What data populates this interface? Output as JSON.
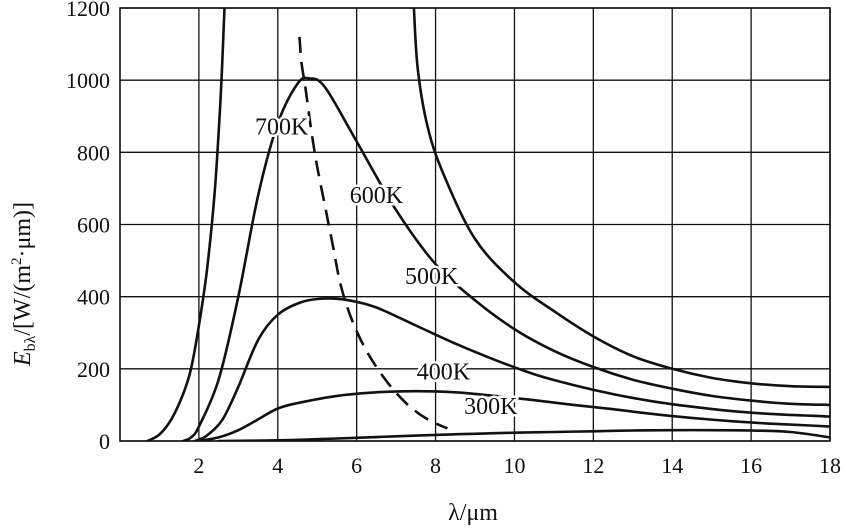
{
  "chart_data": {
    "type": "line",
    "title": "",
    "xlabel": "λ/μm",
    "ylabel_parts": {
      "symbol": "E",
      "sub": "bλ",
      "unit_a": "/[W/(m",
      "sup": "2",
      "unit_b": "·μm)]"
    },
    "xlim": [
      0,
      18
    ],
    "ylim": [
      0,
      1200
    ],
    "x_ticks": [
      2,
      4,
      6,
      8,
      10,
      12,
      14,
      16,
      18
    ],
    "x_tick_labels": [
      "2",
      "4",
      "6",
      "8",
      "10",
      "12",
      "14",
      "16",
      "18"
    ],
    "y_ticks": [
      0,
      200,
      400,
      600,
      800,
      1000,
      1200
    ],
    "y_tick_labels": [
      "0",
      "200",
      "400",
      "600",
      "800",
      "1000",
      "1200"
    ],
    "grid": true,
    "colors": {
      "line": "#111111",
      "grid": "#111111",
      "background": "#ffffff"
    },
    "series": [
      {
        "name": "700K",
        "label_anchor": [
          4.1,
          850
        ],
        "segments": [
          [
            [
              0.7,
              0
            ],
            [
              1.0,
              18
            ],
            [
              1.3,
              60
            ],
            [
              1.6,
              130
            ],
            [
              1.8,
              200
            ],
            [
              2.0,
              320
            ],
            [
              2.2,
              470
            ],
            [
              2.4,
              690
            ],
            [
              2.55,
              950
            ],
            [
              2.65,
              1200
            ]
          ],
          [
            [
              7.45,
              1200
            ],
            [
              7.55,
              1030
            ],
            [
              7.8,
              870
            ],
            [
              8.2,
              740
            ],
            [
              9.0,
              560
            ],
            [
              10.0,
              440
            ],
            [
              11.0,
              360
            ],
            [
              12.0,
              290
            ],
            [
              13.0,
              235
            ],
            [
              14.0,
              200
            ],
            [
              15.0,
              175
            ],
            [
              16.0,
              160
            ],
            [
              17.0,
              152
            ],
            [
              18.0,
              150
            ]
          ]
        ]
      },
      {
        "name": "600K",
        "label_anchor": [
          6.5,
          660
        ],
        "segments": [
          [
            [
              1.6,
              0
            ],
            [
              1.8,
              10
            ],
            [
              2.0,
              40
            ],
            [
              2.5,
              170
            ],
            [
              3.0,
              400
            ],
            [
              3.5,
              680
            ],
            [
              4.0,
              880
            ],
            [
              4.5,
              990
            ],
            [
              4.8,
              1005
            ],
            [
              5.2,
              980
            ],
            [
              6.0,
              830
            ],
            [
              7.0,
              640
            ],
            [
              8.0,
              490
            ],
            [
              9.0,
              390
            ],
            [
              10.0,
              310
            ],
            [
              11.0,
              250
            ],
            [
              12.0,
              205
            ],
            [
              13.0,
              170
            ],
            [
              14.0,
              145
            ],
            [
              15.0,
              125
            ],
            [
              16.0,
              112
            ],
            [
              17.0,
              103
            ],
            [
              18.0,
              100
            ]
          ]
        ]
      },
      {
        "name": "500K",
        "label_anchor": [
          7.9,
          435
        ],
        "segments": [
          [
            [
              1.9,
              0
            ],
            [
              2.2,
              15
            ],
            [
              2.6,
              60
            ],
            [
              3.0,
              150
            ],
            [
              3.5,
              280
            ],
            [
              4.0,
              350
            ],
            [
              4.6,
              385
            ],
            [
              5.2,
              395
            ],
            [
              5.8,
              390
            ],
            [
              6.5,
              370
            ],
            [
              7.5,
              320
            ],
            [
              8.5,
              270
            ],
            [
              9.5,
              225
            ],
            [
              10.5,
              185
            ],
            [
              11.5,
              155
            ],
            [
              12.5,
              130
            ],
            [
              13.5,
              110
            ],
            [
              14.5,
              95
            ],
            [
              15.5,
              83
            ],
            [
              16.5,
              75
            ],
            [
              17.5,
              70
            ],
            [
              18.0,
              68
            ]
          ]
        ]
      },
      {
        "name": "400K",
        "label_anchor": [
          8.2,
          170
        ],
        "segments": [
          [
            [
              2.0,
              0
            ],
            [
              2.5,
              10
            ],
            [
              3.0,
              30
            ],
            [
              3.5,
              60
            ],
            [
              4.0,
              90
            ],
            [
              4.5,
              105
            ],
            [
              5.5,
              125
            ],
            [
              6.5,
              135
            ],
            [
              7.5,
              138
            ],
            [
              8.5,
              135
            ],
            [
              9.5,
              125
            ],
            [
              10.5,
              113
            ],
            [
              11.5,
              100
            ],
            [
              12.5,
              88
            ],
            [
              13.5,
              75
            ],
            [
              14.5,
              64
            ],
            [
              15.5,
              55
            ],
            [
              16.5,
              48
            ],
            [
              17.5,
              43
            ],
            [
              18.0,
              40
            ]
          ]
        ]
      },
      {
        "name": "300K",
        "label_anchor": [
          9.4,
          75
        ],
        "segments": [
          [
            [
              2.5,
              0
            ],
            [
              4.0,
              2
            ],
            [
              5.0,
              5
            ],
            [
              6.0,
              9
            ],
            [
              7.0,
              13
            ],
            [
              8.0,
              17
            ],
            [
              9.0,
              20
            ],
            [
              10.0,
              23
            ],
            [
              11.0,
              25
            ],
            [
              12.0,
              27
            ],
            [
              13.0,
              29
            ],
            [
              14.0,
              30
            ],
            [
              15.0,
              30
            ],
            [
              16.0,
              29
            ],
            [
              17.0,
              25
            ],
            [
              18.0,
              10
            ]
          ]
        ]
      }
    ],
    "peak_locus": {
      "style": "dashed",
      "points": [
        [
          4.55,
          1120
        ],
        [
          4.6,
          1050
        ],
        [
          4.7,
          980
        ],
        [
          4.85,
          860
        ],
        [
          5.0,
          760
        ],
        [
          5.2,
          650
        ],
        [
          5.4,
          540
        ],
        [
          5.6,
          430
        ],
        [
          5.9,
          330
        ],
        [
          6.3,
          240
        ],
        [
          6.8,
          160
        ],
        [
          7.3,
          100
        ],
        [
          7.8,
          60
        ],
        [
          8.3,
          35
        ]
      ]
    }
  }
}
